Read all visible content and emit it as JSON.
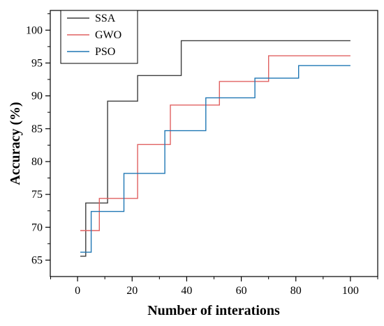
{
  "chart_data": {
    "type": "line",
    "title": "",
    "xlabel": "Number of interations",
    "ylabel": "Accuracy (%)",
    "xlim": [
      -10,
      110
    ],
    "ylim": [
      62.5,
      103
    ],
    "xticks": [
      "0",
      "20",
      "40",
      "60",
      "80",
      "100"
    ],
    "yticks": [
      "65",
      "70",
      "75",
      "80",
      "85",
      "90",
      "95",
      "100"
    ],
    "grid": false,
    "legend_position": "top-left",
    "step": "post",
    "series": [
      {
        "name": "SSA",
        "color": "#3d3d3d",
        "x": [
          1,
          3,
          11,
          22,
          38,
          100
        ],
        "y": [
          65.6,
          73.7,
          89.2,
          93.1,
          98.4,
          98.4
        ]
      },
      {
        "name": "GWO",
        "color": "#e06060",
        "x": [
          1,
          8,
          22,
          34,
          52,
          70,
          100
        ],
        "y": [
          69.5,
          74.4,
          82.6,
          88.6,
          92.2,
          96.1,
          96.1
        ]
      },
      {
        "name": "PSO",
        "color": "#1f77b4",
        "x": [
          1,
          5,
          17,
          32,
          47,
          65,
          81,
          100
        ],
        "y": [
          66.2,
          72.4,
          78.2,
          84.7,
          89.7,
          92.7,
          94.6,
          94.6
        ]
      }
    ]
  }
}
